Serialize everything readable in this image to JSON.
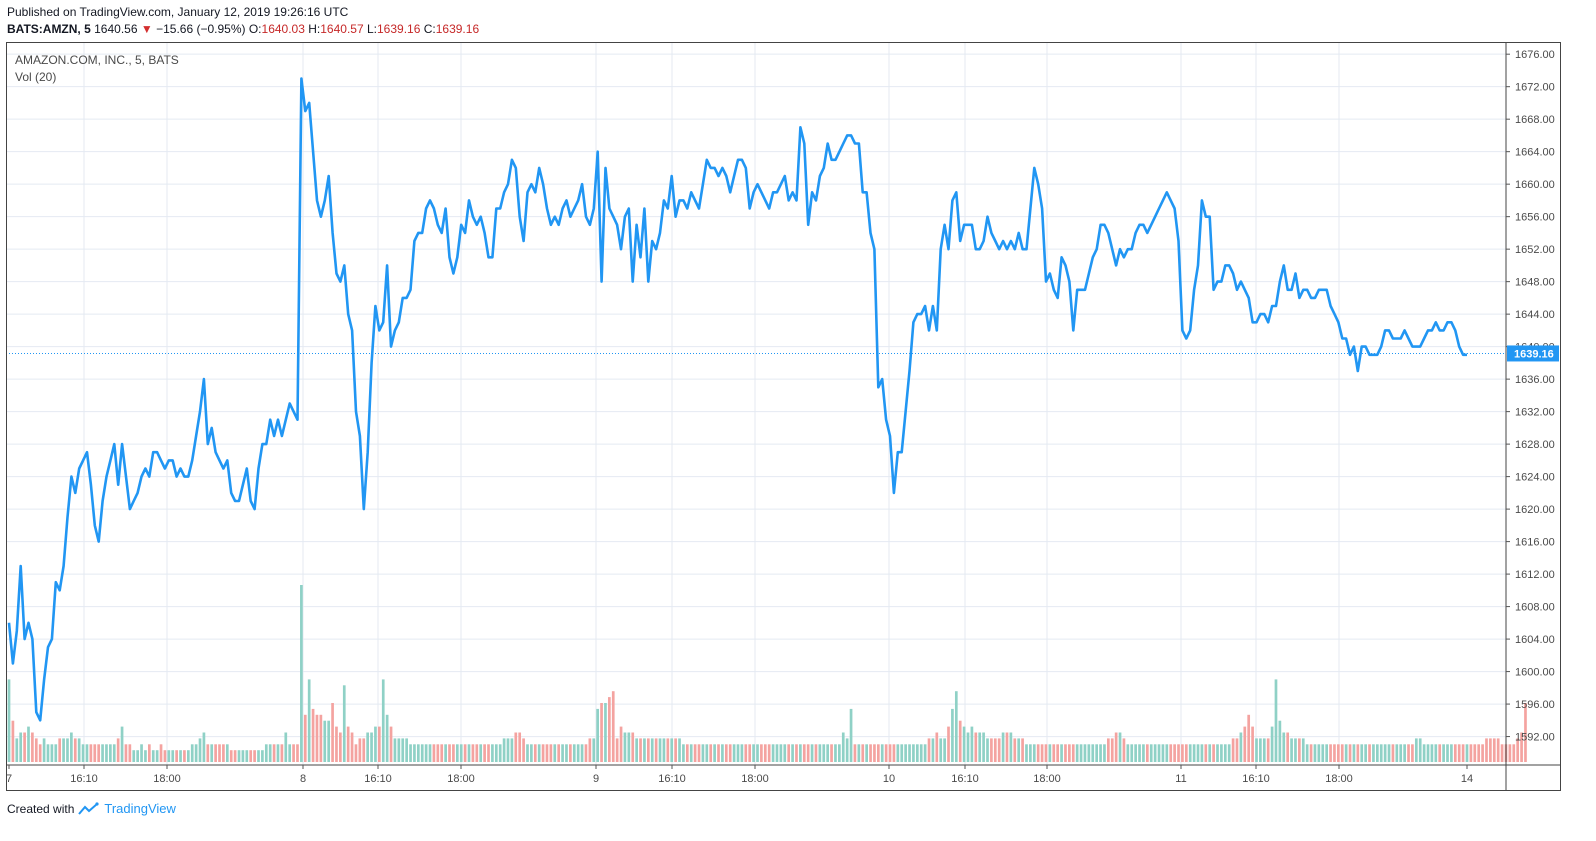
{
  "header": {
    "published": "Published on TradingView.com, January 12, 2019 19:26:16 UTC",
    "symbol": "BATS:AMZN, 5",
    "last": "1640.56",
    "change": "−15.66 (−0.95%)",
    "open_label": "O:",
    "open": "1640.03",
    "high_label": "H:",
    "high": "1640.57",
    "low_label": "L:",
    "low": "1639.16",
    "close_label": "C:",
    "close": "1639.16"
  },
  "legend": {
    "title": "AMAZON.COM, INC., 5, BATS",
    "volume": "Vol (20)"
  },
  "footer": {
    "created_with": "Created with",
    "brand": "TradingView"
  },
  "icons": {
    "change_direction": "down-triangle-icon",
    "brand_logo": "tradingview-logo-icon"
  },
  "colors": {
    "line": "#2196f3",
    "up_volume": "#8fd1c6",
    "down_volume": "#f4a3a0",
    "grid": "#e4eaf2",
    "last_price_tag": "#2196f3",
    "negative": "#c62828"
  },
  "chart_data": {
    "type": "line",
    "title": "AMAZON.COM, INC., 5, BATS",
    "series": [
      {
        "name": "AMZN",
        "values": [
          1606,
          1601,
          1605,
          1613,
          1604,
          1606,
          1604,
          1595,
          1594,
          1599,
          1603,
          1604,
          1611,
          1610,
          1613,
          1619,
          1624,
          1622,
          1625,
          1626,
          1627,
          1623,
          1618,
          1616,
          1621,
          1624,
          1626,
          1628,
          1623,
          1628,
          1624,
          1620,
          1621,
          1622,
          1624,
          1625,
          1624,
          1627,
          1627,
          1626,
          1625,
          1626,
          1626,
          1624,
          1625,
          1624,
          1624,
          1626,
          1629,
          1632,
          1636,
          1628,
          1630,
          1627,
          1626,
          1625,
          1626,
          1622,
          1621,
          1621,
          1623,
          1625,
          1621,
          1620,
          1625,
          1628,
          1628,
          1631,
          1629,
          1631,
          1629,
          1631,
          1633,
          1632,
          1631,
          1673,
          1669,
          1670,
          1664,
          1658,
          1656,
          1658,
          1661,
          1654,
          1649,
          1648,
          1650,
          1644,
          1642,
          1632,
          1629,
          1620,
          1627,
          1638,
          1645,
          1642,
          1643,
          1650,
          1640,
          1642,
          1643,
          1646,
          1646,
          1647,
          1653,
          1654,
          1654,
          1657,
          1658,
          1657,
          1655,
          1654,
          1657,
          1651,
          1649,
          1651,
          1655,
          1654,
          1658,
          1656,
          1655,
          1656,
          1654,
          1651,
          1651,
          1657,
          1657,
          1659,
          1660,
          1663,
          1662,
          1656,
          1653,
          1659,
          1660,
          1659,
          1662,
          1660,
          1657,
          1655,
          1656,
          1655,
          1657,
          1658,
          1656,
          1657,
          1658,
          1660,
          1656,
          1655,
          1657,
          1664,
          1648,
          1662,
          1657,
          1656,
          1655,
          1652,
          1656,
          1657,
          1648,
          1655,
          1651,
          1657,
          1648,
          1653,
          1652,
          1654,
          1658,
          1657,
          1661,
          1656,
          1658,
          1658,
          1657,
          1659,
          1658,
          1657,
          1660,
          1663,
          1662,
          1662,
          1661,
          1662,
          1661,
          1659,
          1661,
          1663,
          1663,
          1662,
          1657,
          1659,
          1660,
          1659,
          1658,
          1657,
          1659,
          1659,
          1660,
          1661,
          1658,
          1659,
          1658,
          1667,
          1665,
          1655,
          1659,
          1658,
          1661,
          1662,
          1665,
          1663,
          1663,
          1664,
          1665,
          1666,
          1666,
          1665,
          1665,
          1659,
          1659,
          1654,
          1652,
          1635,
          1636,
          1631,
          1629,
          1622,
          1627,
          1627,
          1632,
          1637,
          1643,
          1644,
          1644,
          1645,
          1642,
          1645,
          1642,
          1652,
          1655,
          1652,
          1658,
          1659,
          1653,
          1655,
          1655,
          1655,
          1652,
          1652,
          1653,
          1656,
          1654,
          1653,
          1652,
          1653,
          1652,
          1653,
          1652,
          1654,
          1652,
          1652,
          1657,
          1662,
          1660,
          1657,
          1648,
          1649,
          1647,
          1646,
          1651,
          1650,
          1648,
          1642,
          1647,
          1647,
          1647,
          1649,
          1651,
          1652,
          1655,
          1655,
          1654,
          1652,
          1650,
          1652,
          1651,
          1652,
          1652,
          1654,
          1655,
          1655,
          1654,
          1655,
          1656,
          1657,
          1658,
          1659,
          1658,
          1657,
          1653,
          1642,
          1641,
          1642,
          1647,
          1650,
          1658,
          1656,
          1656,
          1647,
          1648,
          1648,
          1650,
          1650,
          1649,
          1647,
          1648,
          1647,
          1646,
          1643,
          1643,
          1644,
          1644,
          1643,
          1645,
          1645,
          1648,
          1650,
          1647,
          1647,
          1649,
          1646,
          1647,
          1647,
          1646,
          1646,
          1647,
          1647,
          1647,
          1645,
          1644,
          1643,
          1641,
          1641,
          1639,
          1640,
          1637,
          1640,
          1640,
          1639,
          1639,
          1639,
          1640,
          1642,
          1642,
          1641,
          1641,
          1641,
          1642,
          1641,
          1640,
          1640,
          1640,
          1641,
          1642,
          1642,
          1643,
          1642,
          1642,
          1643,
          1643,
          1642,
          1640,
          1639,
          1639
        ]
      }
    ],
    "volume": {
      "name": "Vol (20)",
      "values": [
        14,
        7,
        4,
        5,
        5,
        6,
        5,
        4,
        3,
        4,
        3,
        3,
        3,
        4,
        4,
        4,
        5,
        4,
        4,
        3,
        3,
        3,
        3,
        3,
        3,
        3,
        3,
        3,
        4,
        6,
        3,
        3,
        2,
        2,
        3,
        2,
        3,
        2,
        2,
        3,
        2,
        2,
        2,
        2,
        2,
        2,
        2,
        3,
        3,
        4,
        5,
        3,
        3,
        3,
        3,
        3,
        3,
        2,
        2,
        2,
        2,
        2,
        2,
        2,
        2,
        2,
        3,
        3,
        3,
        3,
        3,
        5,
        3,
        3,
        3,
        30,
        8,
        14,
        9,
        8,
        8,
        7,
        7,
        10,
        6,
        5,
        13,
        6,
        5,
        3,
        4,
        4,
        5,
        5,
        6,
        6,
        14,
        8,
        6,
        4,
        4,
        4,
        4,
        3,
        3,
        3,
        3,
        3,
        3,
        3,
        3,
        3,
        3,
        3,
        3,
        3,
        3,
        3,
        3,
        3,
        3,
        3,
        3,
        3,
        3,
        3,
        3,
        4,
        4,
        4,
        5,
        5,
        4,
        3,
        3,
        3,
        3,
        3,
        3,
        3,
        3,
        3,
        3,
        3,
        3,
        3,
        3,
        3,
        3,
        4,
        4,
        9,
        10,
        10,
        11,
        12,
        4,
        6,
        5,
        5,
        5,
        4,
        4,
        4,
        4,
        4,
        4,
        4,
        4,
        4,
        4,
        4,
        4,
        3,
        3,
        3,
        3,
        3,
        3,
        3,
        3,
        3,
        3,
        3,
        3,
        3,
        3,
        3,
        3,
        3,
        3,
        3,
        3,
        3,
        3,
        3,
        3,
        3,
        3,
        3,
        3,
        3,
        3,
        3,
        3,
        3,
        3,
        3,
        3,
        3,
        3,
        3,
        3,
        3,
        5,
        4,
        9,
        3,
        3,
        3,
        3,
        3,
        3,
        3,
        3,
        3,
        3,
        3,
        3,
        3,
        3,
        3,
        3,
        3,
        3,
        3,
        4,
        4,
        5,
        4,
        4,
        6,
        9,
        12,
        7,
        6,
        5,
        6,
        5,
        5,
        5,
        4,
        4,
        4,
        4,
        5,
        5,
        5,
        4,
        4,
        4,
        3,
        3,
        3,
        3,
        3,
        3,
        3,
        3,
        3,
        3,
        3,
        3,
        3,
        3,
        3,
        3,
        3,
        3,
        3,
        3,
        3,
        4,
        4,
        5,
        5,
        4,
        3,
        3,
        3,
        3,
        3,
        3,
        3,
        3,
        3,
        3,
        3,
        3,
        3,
        3,
        3,
        3,
        3,
        3,
        3,
        3,
        3,
        3,
        3,
        3,
        3,
        3,
        3,
        4,
        4,
        5,
        6,
        8,
        6,
        4,
        4,
        4,
        4,
        6,
        14,
        7,
        5,
        5,
        4,
        4,
        4,
        4,
        3,
        3,
        3,
        3,
        3,
        3,
        3,
        3,
        3,
        3,
        3,
        3,
        3,
        3,
        3,
        3,
        3,
        3,
        3,
        3,
        3,
        3,
        3,
        3,
        3,
        3,
        3,
        3,
        4,
        4,
        3,
        3,
        3,
        3,
        3,
        3,
        3,
        3,
        3,
        3,
        3,
        3,
        3,
        3,
        3,
        3,
        4,
        4,
        4,
        4,
        3,
        3,
        3,
        3,
        4,
        5,
        10
      ]
    },
    "x_tick_labels": [
      "7",
      "16:10",
      "18:00",
      "8",
      "16:10",
      "18:00",
      "9",
      "16:10",
      "18:00",
      "10",
      "16:10",
      "18:00",
      "11",
      "16:10",
      "18:00",
      "14"
    ],
    "y_tick_labels": [
      "1676.00",
      "1672.00",
      "1668.00",
      "1664.00",
      "1660.00",
      "1656.00",
      "1652.00",
      "1648.00",
      "1644.00",
      "1640.00",
      "1636.00",
      "1632.00",
      "1628.00",
      "1624.00",
      "1620.00",
      "1616.00",
      "1612.00",
      "1608.00",
      "1604.00",
      "1600.00",
      "1596.00",
      "1592.00"
    ],
    "ylim": [
      1588.5,
      1677.5
    ],
    "last_price": "1639.16",
    "grid": true
  }
}
